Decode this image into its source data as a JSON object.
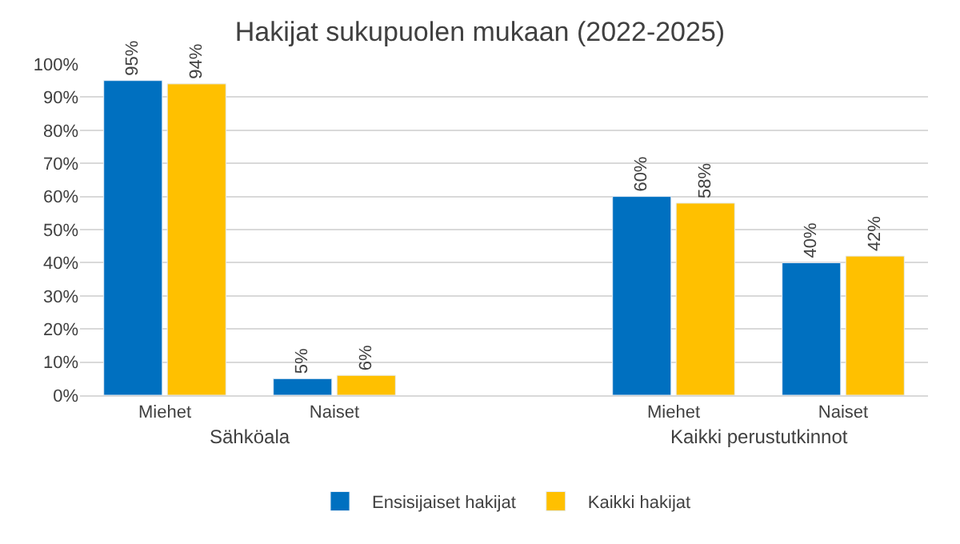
{
  "chart_data": {
    "type": "bar",
    "title": "Hakijat sukupuolen mukaan (2022-2025)",
    "categories": [
      "Miehet",
      "Naiset",
      null,
      "Miehet",
      "Naiset"
    ],
    "series": [
      {
        "name": "Ensisijaiset hakijat",
        "color": "#0070c0",
        "values": [
          95,
          5,
          null,
          60,
          40
        ],
        "value_labels": [
          "95%",
          "5%",
          null,
          "60%",
          "40%"
        ]
      },
      {
        "name": "Kaikki hakijat",
        "color": "#ffc000",
        "values": [
          94,
          6,
          null,
          58,
          42
        ],
        "value_labels": [
          "94%",
          "6%",
          null,
          "58%",
          "42%"
        ]
      }
    ],
    "annotations": [
      "Sähköala",
      "Kaikki perustutkinnot"
    ],
    "ylim": [
      0,
      100
    ],
    "yticks": [
      {
        "value": 0,
        "label": "0%"
      },
      {
        "value": 10,
        "label": "10%"
      },
      {
        "value": 20,
        "label": "20%"
      },
      {
        "value": 30,
        "label": "30%"
      },
      {
        "value": 40,
        "label": "40%"
      },
      {
        "value": 50,
        "label": "50%"
      },
      {
        "value": 60,
        "label": "60%"
      },
      {
        "value": 70,
        "label": "70%"
      },
      {
        "value": 80,
        "label": "80%"
      },
      {
        "value": 90,
        "label": "90%"
      },
      {
        "value": 100,
        "label": "100%"
      }
    ],
    "grid": "y",
    "legend": "bottom"
  }
}
